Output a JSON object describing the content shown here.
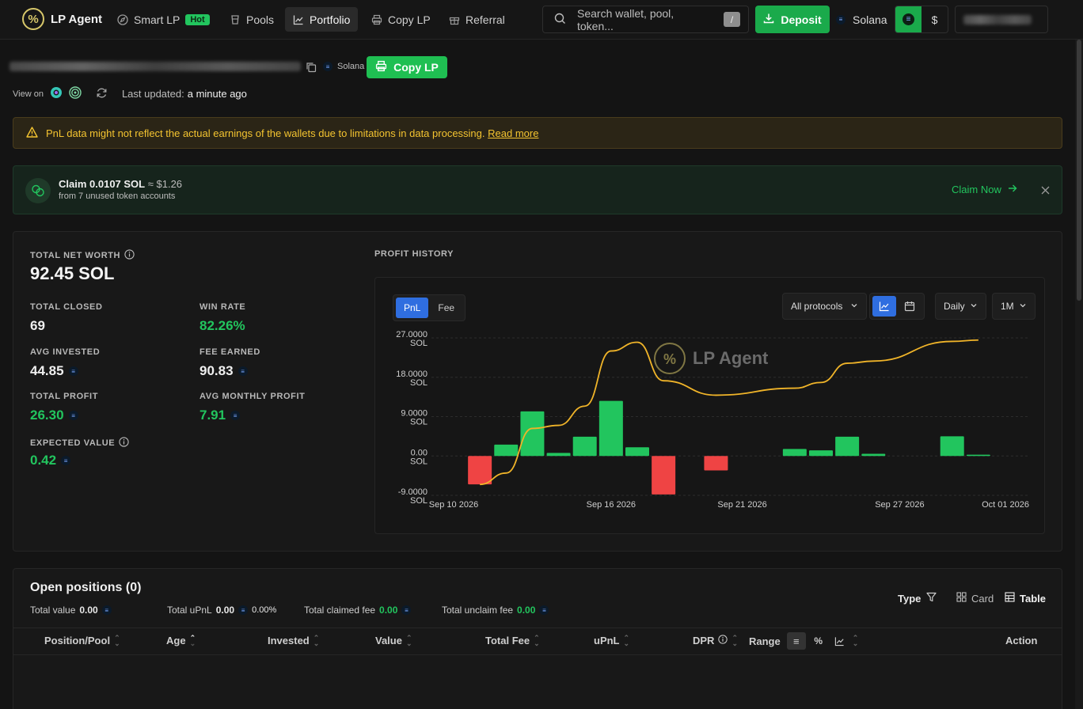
{
  "nav": {
    "logo_text": "LP Agent",
    "items": [
      {
        "label": "Smart LP",
        "badge": "Hot"
      },
      {
        "label": "Pools"
      },
      {
        "label": "Portfolio"
      },
      {
        "label": "Copy LP"
      },
      {
        "label": "Referral"
      }
    ],
    "search_placeholder": "Search wallet, pool, token...",
    "search_shortcut": "/",
    "deposit_label": "Deposit",
    "chain_label": "Solana",
    "currency_sol": "≡",
    "currency_usd": "$"
  },
  "wallet": {
    "chain_badge": "Solana",
    "copy_button": "Copy LP",
    "view_on_label": "View on",
    "last_updated_label": "Last updated:",
    "last_updated_value": "a minute ago"
  },
  "notice": {
    "text": "PnL data might not reflect the actual earnings of the wallets due to limitations in data processing.",
    "link": "Read more"
  },
  "claim": {
    "title": "Claim 0.0107 SOL",
    "approx": "≈ $1.26",
    "subtitle": "from 7 unused token accounts",
    "action": "Claim Now"
  },
  "stats": {
    "total_net_worth_label": "TOTAL NET WORTH",
    "total_net_worth": "92.45 SOL",
    "total_closed_label": "TOTAL CLOSED",
    "total_closed": "69",
    "win_rate_label": "WIN RATE",
    "win_rate": "82.26%",
    "avg_invested_label": "AVG INVESTED",
    "avg_invested": "44.85",
    "fee_earned_label": "FEE EARNED",
    "fee_earned": "90.83",
    "total_profit_label": "TOTAL PROFIT",
    "total_profit": "26.30",
    "avg_monthly_profit_label": "AVG MONTHLY PROFIT",
    "avg_monthly_profit": "7.91",
    "expected_value_label": "EXPECTED VALUE",
    "expected_value": "0.42"
  },
  "profit_history": {
    "title": "PROFIT HISTORY",
    "tabs": [
      "PnL",
      "Fee"
    ],
    "protocol_filter": "All protocols",
    "interval": "Daily",
    "range": "1M",
    "watermark": "LP Agent"
  },
  "chart_data": {
    "type": "bar",
    "ylim": [
      -9,
      27
    ],
    "y_ticks": [
      "27.0000",
      "18.0000",
      "9.0000",
      "0.00",
      "-9.0000"
    ],
    "y_unit": "SOL",
    "x_ticks": [
      "Sep 10 2026",
      "Sep 16 2026",
      "Sep 21 2026",
      "Sep 27 2026",
      "Oct 01 2026"
    ],
    "bars": [
      {
        "date": "Sep 11 2026",
        "value": -6.5
      },
      {
        "date": "Sep 12 2026",
        "value": 2.6
      },
      {
        "date": "Sep 13 2026",
        "value": 10.2
      },
      {
        "date": "Sep 14 2026",
        "value": 0.7
      },
      {
        "date": "Sep 15 2026",
        "value": 4.4
      },
      {
        "date": "Sep 16 2026",
        "value": 12.6
      },
      {
        "date": "Sep 17 2026",
        "value": 2.0
      },
      {
        "date": "Sep 18 2026",
        "value": -8.8
      },
      {
        "date": "Sep 20 2026",
        "value": -3.3
      },
      {
        "date": "Sep 23 2026",
        "value": 1.6
      },
      {
        "date": "Sep 24 2026",
        "value": 1.3
      },
      {
        "date": "Sep 25 2026",
        "value": 4.4
      },
      {
        "date": "Sep 26 2026",
        "value": 0.5
      },
      {
        "date": "Sep 29 2026",
        "value": 4.5
      },
      {
        "date": "Sep 30 2026",
        "value": 0.3
      }
    ],
    "cumulative_line": [
      {
        "date": "Sep 11 2026",
        "value": -6.5
      },
      {
        "date": "Sep 12 2026",
        "value": -3.9
      },
      {
        "date": "Sep 13 2026",
        "value": 6.3
      },
      {
        "date": "Sep 14 2026",
        "value": 7.0
      },
      {
        "date": "Sep 15 2026",
        "value": 11.4
      },
      {
        "date": "Sep 16 2026",
        "value": 24.0
      },
      {
        "date": "Sep 17 2026",
        "value": 26.0
      },
      {
        "date": "Sep 18 2026",
        "value": 17.2
      },
      {
        "date": "Sep 20 2026",
        "value": 13.9
      },
      {
        "date": "Sep 23 2026",
        "value": 15.5
      },
      {
        "date": "Sep 24 2026",
        "value": 16.8
      },
      {
        "date": "Sep 25 2026",
        "value": 21.2
      },
      {
        "date": "Sep 26 2026",
        "value": 21.7
      },
      {
        "date": "Sep 29 2026",
        "value": 26.2
      },
      {
        "date": "Sep 30 2026",
        "value": 26.5
      }
    ]
  },
  "positions": {
    "title": "Open positions (0)",
    "total_value_label": "Total value",
    "total_value": "0.00",
    "total_upnl_label": "Total uPnL",
    "total_upnl": "0.00",
    "total_upnl_pct": "0.00%",
    "claimed_fee_label": "Total claimed fee",
    "claimed_fee": "0.00",
    "unclaim_fee_label": "Total unclaim fee",
    "unclaim_fee": "0.00",
    "type_label": "Type",
    "view_card": "Card",
    "view_table": "Table",
    "columns": [
      "Position/Pool",
      "Age",
      "Invested",
      "Value",
      "Total Fee",
      "uPnL",
      "DPR",
      "Range",
      "Action"
    ],
    "range_options": [
      "≡",
      "%"
    ]
  },
  "colors": {
    "accent_green": "#22c55e",
    "loss_red": "#ef4444",
    "line_gold": "#f0b429",
    "selected_blue": "#2f6ee0"
  }
}
